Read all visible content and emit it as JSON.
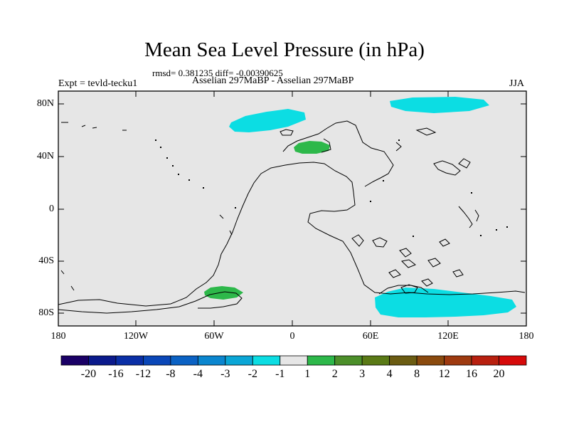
{
  "title": "Mean Sea Level Pressure (in hPa)",
  "stats": "rmsd= 0.381235 diff= -0.00390625",
  "left_label": "Expt = tevld-tecku1",
  "center_label": "Asselian 297MaBP - Asselian 297MaBP",
  "right_label": "JJA",
  "y_ticks": [
    "80N",
    "40N",
    "0",
    "40S",
    "80S"
  ],
  "x_ticks": [
    "180",
    "120W",
    "60W",
    "0",
    "60E",
    "120E",
    "180"
  ],
  "colorbar": {
    "colors": [
      "#1a0066",
      "#0b1a8c",
      "#0a2fa6",
      "#0a47b8",
      "#0b62c4",
      "#0b86cf",
      "#0aa6d6",
      "#0cdde3",
      "#e6e6e6",
      "#2db84a",
      "#4c8f2a",
      "#5a7a16",
      "#6b5c12",
      "#8a4a0e",
      "#9e3a10",
      "#b8200f",
      "#d60a0a"
    ],
    "labels": [
      "-20",
      "-16",
      "-12",
      "-8",
      "-4",
      "-3",
      "-2",
      "-1",
      "1",
      "2",
      "3",
      "4",
      "8",
      "12",
      "16",
      "20"
    ]
  }
}
